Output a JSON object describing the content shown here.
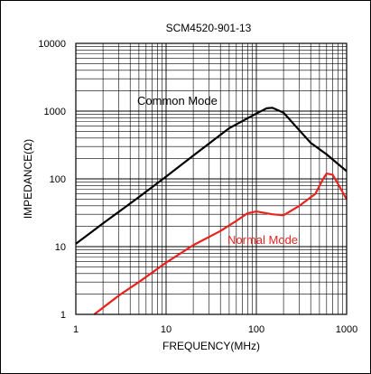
{
  "chart_data": {
    "type": "line",
    "title": "SCM4520-901-13",
    "xlabel": "FREQUENCY(MHz)",
    "ylabel": "IMPEDANCE(Ω)",
    "x_scale": "log",
    "y_scale": "log",
    "xlim": [
      1,
      1000
    ],
    "ylim": [
      1,
      10000
    ],
    "grid": true,
    "x_ticks": [
      "1",
      "10",
      "100",
      "1000"
    ],
    "y_ticks": [
      "1",
      "10",
      "100",
      "1000",
      "10000"
    ],
    "series": [
      {
        "name": "Common Mode",
        "color": "#000000",
        "x": [
          1,
          2,
          5,
          10,
          20,
          50,
          100,
          130,
          150,
          200,
          300,
          400,
          600,
          1000
        ],
        "y": [
          11,
          22,
          54,
          108,
          220,
          560,
          920,
          1100,
          1120,
          950,
          520,
          340,
          230,
          130
        ]
      },
      {
        "name": "Normal Mode",
        "color": "#e8231e",
        "x": [
          1.6,
          3,
          5,
          10,
          20,
          40,
          60,
          80,
          100,
          150,
          200,
          300,
          450,
          550,
          600,
          700,
          800,
          1000
        ],
        "y": [
          1,
          1.9,
          3,
          5.8,
          10.5,
          17,
          24,
          31,
          33,
          30,
          29,
          40,
          60,
          100,
          120,
          115,
          85,
          50
        ]
      }
    ]
  }
}
